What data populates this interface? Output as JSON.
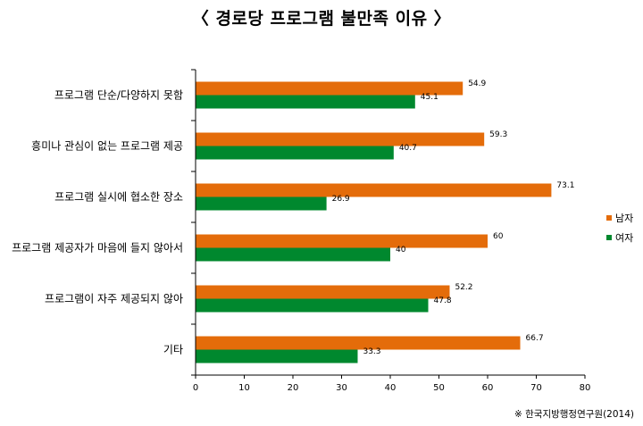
{
  "title": "〈 경로당 프로그램 불만족 이유 〉",
  "source": "※ 한국지방행정연구원(2014)",
  "colors": {
    "male": "#E46C0A",
    "female": "#00882E",
    "axis": "#000000"
  },
  "chart_data": {
    "type": "bar",
    "orientation": "horizontal",
    "categories": [
      "프로그램 단순/다양하지 못함",
      "흥미나 관심이 없는 프로그램 제공",
      "프로그램 실시에 협소한 장소",
      "프로그램 제공자가 마음에 들지 않아서",
      "프로그램이 자주 제공되지 않아",
      "기타"
    ],
    "series": [
      {
        "name": "남자",
        "values": [
          54.9,
          59.3,
          73.1,
          60,
          52.2,
          66.7
        ]
      },
      {
        "name": "여자",
        "values": [
          45.1,
          40.7,
          26.9,
          40,
          47.8,
          33.3
        ]
      }
    ],
    "value_labels": [
      [
        "54.9",
        "59.3",
        "73.1",
        "60",
        "52.2",
        "66.7"
      ],
      [
        "45.1",
        "40.7",
        "26.9",
        "40",
        "47.8",
        "33.3"
      ]
    ],
    "xlim": [
      0,
      80
    ],
    "xticks": [
      "0",
      "10",
      "20",
      "30",
      "40",
      "50",
      "60",
      "70",
      "80"
    ],
    "xlabel": "",
    "ylabel": "",
    "grid": false,
    "legend_position": "right"
  }
}
